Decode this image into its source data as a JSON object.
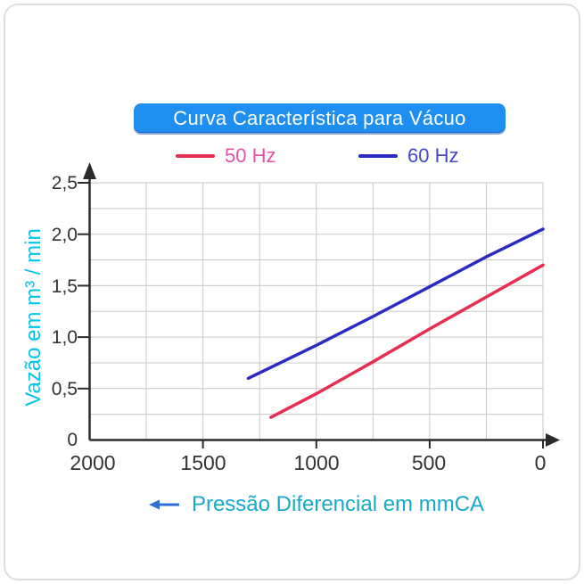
{
  "title": {
    "text": "Curva Característica para Vácuo",
    "bg": "#1e8ff0",
    "text_color": "#ffffff"
  },
  "legend": [
    {
      "label": "50 Hz",
      "label_color": "#e750a6"
    },
    {
      "label": "60 Hz",
      "label_color": "#4447c6"
    }
  ],
  "axes": {
    "y_label": "Vazão em m³ / min",
    "y_label_color": "#00c6e6",
    "x_label": "Pressão Diferencial em mmCA",
    "x_label_color": "#17a9c9",
    "x_arrow_color": "#2e6fd6",
    "y_ticks": [
      "2,5",
      "2,0",
      "1,5",
      "1,0",
      "0,5",
      "0"
    ],
    "x_ticks": [
      "2000",
      "1500",
      "1000",
      "500",
      "0"
    ]
  },
  "chart_data": {
    "type": "line",
    "title": "Curva Característica para Vácuo",
    "xlabel": "Pressão Diferencial em mmCA",
    "ylabel": "Vazão em m³ / min",
    "xlim": [
      2000,
      0
    ],
    "ylim": [
      0,
      2.5
    ],
    "x_axis_reversed": true,
    "grid": {
      "on": true,
      "x_step": 250,
      "y_step": 0.25
    },
    "legend_position": "top",
    "series": [
      {
        "name": "50 Hz",
        "color": "#e62e52",
        "points": [
          [
            1200,
            0.22
          ],
          [
            1000,
            0.45
          ],
          [
            750,
            0.76
          ],
          [
            500,
            1.08
          ],
          [
            250,
            1.39
          ],
          [
            0,
            1.7
          ]
        ]
      },
      {
        "name": "60 Hz",
        "color": "#2b2bc0",
        "points": [
          [
            1300,
            0.6
          ],
          [
            1000,
            0.92
          ],
          [
            750,
            1.2
          ],
          [
            500,
            1.49
          ],
          [
            250,
            1.78
          ],
          [
            0,
            2.05
          ]
        ]
      }
    ]
  }
}
